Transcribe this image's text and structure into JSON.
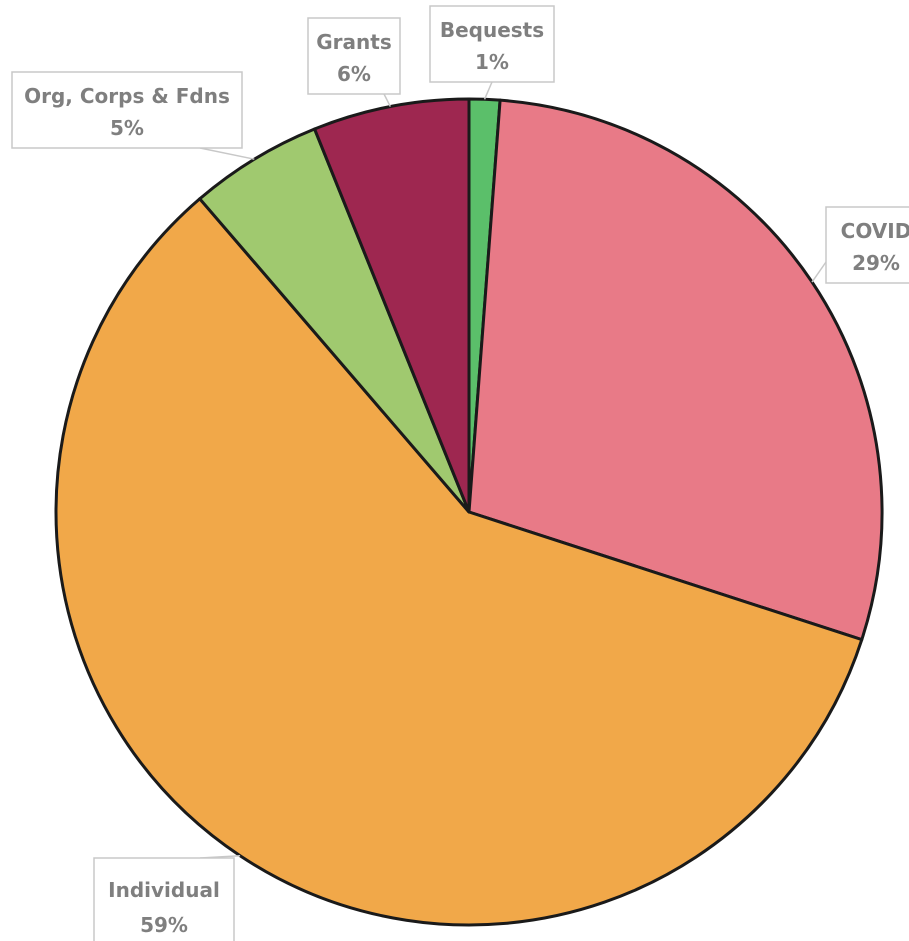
{
  "chart_data": {
    "type": "pie",
    "start_angle_deg": 0,
    "direction": "clockwise",
    "title": "",
    "slices": [
      {
        "label": "Bequests",
        "value": 1.2,
        "percent_label": "1%",
        "color": "#5bbf6a"
      },
      {
        "label": "COVID",
        "value": 28.8,
        "percent_label": "29%",
        "color": "#e87a87"
      },
      {
        "label": "Individual",
        "value": 58.7,
        "percent_label": "59%",
        "color": "#f1a849"
      },
      {
        "label": "Org, Corps & Fdns",
        "value": 5.2,
        "percent_label": "5%",
        "color": "#a0c96f"
      },
      {
        "label": "Grants",
        "value": 6.1,
        "percent_label": "6%",
        "color": "#9e2750"
      }
    ]
  }
}
